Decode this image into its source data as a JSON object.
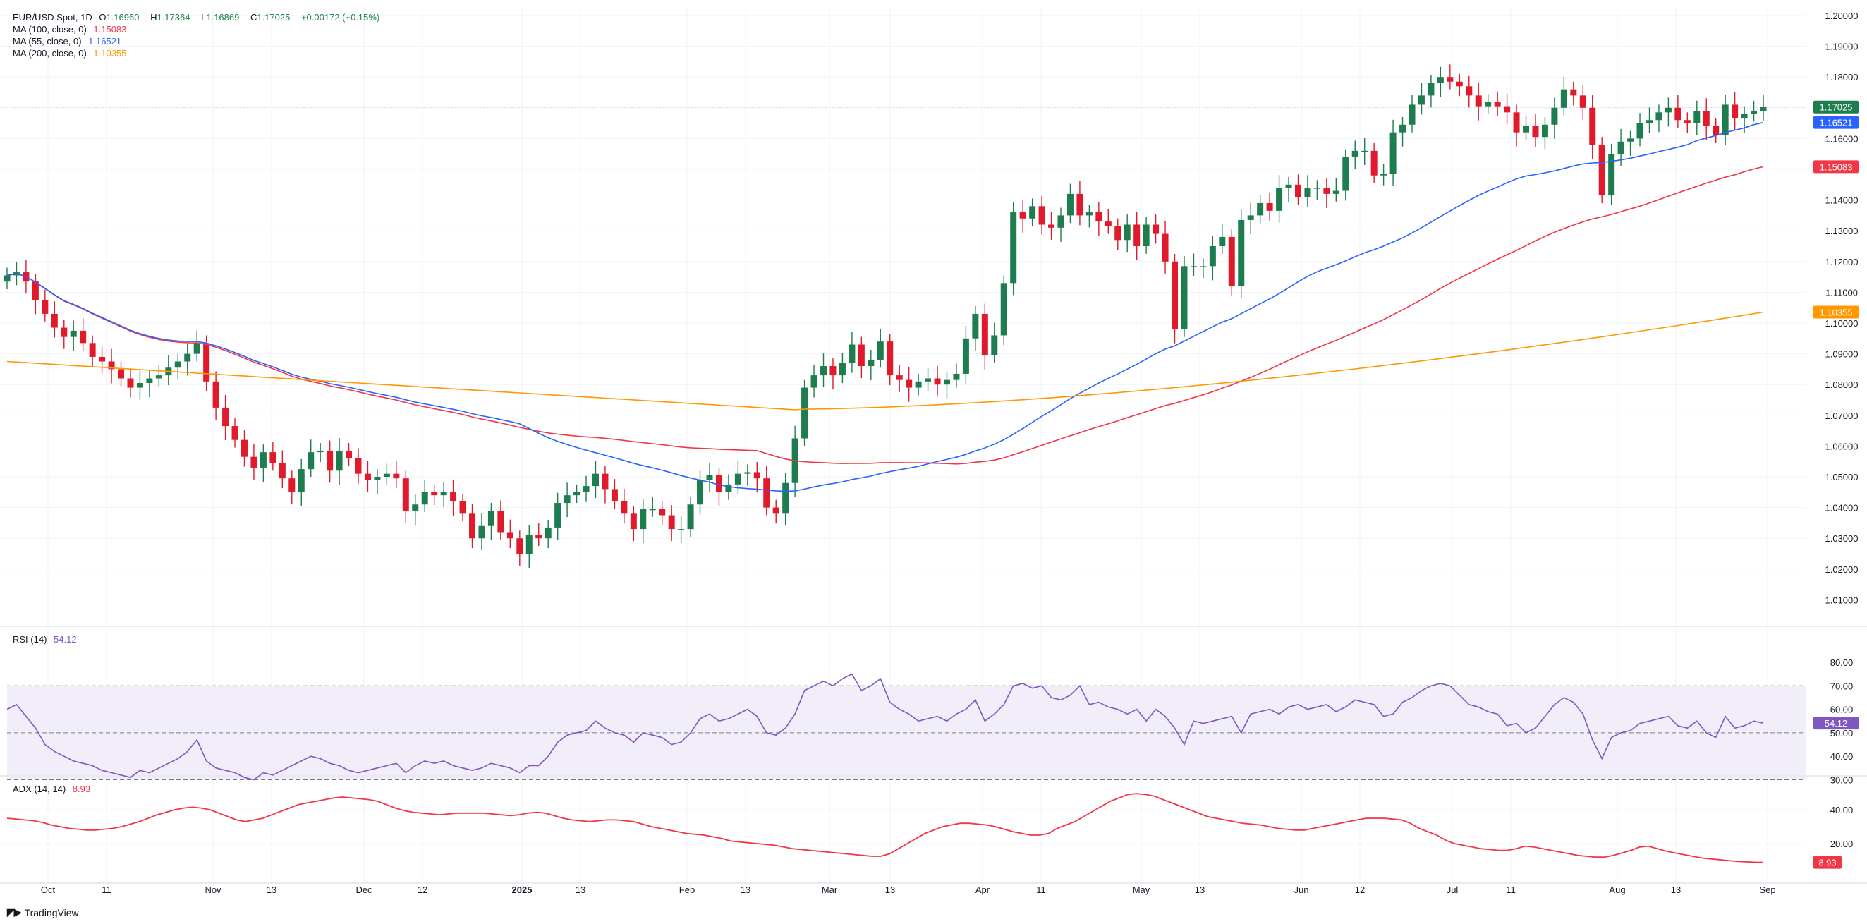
{
  "header": {
    "symbol": "EUR/USD Spot, 1D",
    "open_label": "O",
    "open": "1.16960",
    "high_label": "H",
    "high": "1.17364",
    "low_label": "L",
    "low": "1.16869",
    "close_label": "C",
    "close": "1.17025",
    "change": "+0.00172 (+0.15%)"
  },
  "ma_legend": [
    {
      "label": "MA (100, close, 0)",
      "value": "1.15083",
      "color": "#f23645"
    },
    {
      "label": "MA (55, close, 0)",
      "value": "1.16521",
      "color": "#2962ff"
    },
    {
      "label": "MA (200, close, 0)",
      "value": "1.10355",
      "color": "#ff9800"
    }
  ],
  "rsi_legend": {
    "label": "RSI (14)",
    "value": "54.12",
    "color": "#7e57c2"
  },
  "adx_legend": {
    "label": "ADX (14, 14)",
    "value": "8.93",
    "color": "#f23645"
  },
  "brand": {
    "icon": "tradingview-logo-icon",
    "text": "TradingView"
  },
  "colors": {
    "up": "#1e7d4f",
    "down": "#e01a2b",
    "grid": "#f0f3fa",
    "rsi_band": "#ede7f6"
  },
  "chart_data": [
    {
      "type": "candlestick",
      "title": "EUR/USD Spot, 1D",
      "ylim": [
        1.0,
        1.2
      ],
      "y_ticks": [
        "1.20000",
        "1.19000",
        "1.18000",
        "1.17000",
        "1.16000",
        "1.15000",
        "1.14000",
        "1.13000",
        "1.12000",
        "1.11000",
        "1.10000",
        "1.09000",
        "1.08000",
        "1.07000",
        "1.06000",
        "1.05000",
        "1.04000",
        "1.03000",
        "1.02000",
        "1.01000"
      ],
      "x_ticks": [
        "Oct",
        "11",
        "Nov",
        "13",
        "Dec",
        "12",
        "2025",
        "13",
        "Feb",
        "13",
        "Mar",
        "13",
        "Apr",
        "11",
        "May",
        "13",
        "Jun",
        "12",
        "Jul",
        "11",
        "Aug",
        "13",
        "Sep"
      ],
      "last_price": "1.17025",
      "closes": [
        1.1155,
        1.1165,
        1.1135,
        1.1075,
        1.103,
        1.0985,
        1.0955,
        1.0975,
        1.0935,
        1.089,
        1.0875,
        1.085,
        1.082,
        1.079,
        1.0805,
        1.082,
        1.083,
        1.0855,
        1.0875,
        1.09,
        1.0935,
        1.081,
        1.0725,
        1.0665,
        1.062,
        1.0565,
        1.053,
        1.058,
        1.0545,
        1.0495,
        1.045,
        1.0525,
        1.058,
        1.0585,
        1.052,
        1.0585,
        1.056,
        1.051,
        1.049,
        1.05,
        1.051,
        1.0495,
        1.039,
        1.041,
        1.045,
        1.044,
        1.045,
        1.042,
        1.038,
        1.03,
        1.034,
        1.039,
        1.032,
        1.03,
        1.025,
        1.031,
        1.03,
        1.0335,
        1.0415,
        1.044,
        1.045,
        1.047,
        1.051,
        1.046,
        1.042,
        1.038,
        1.033,
        1.0395,
        1.0395,
        1.0375,
        1.033,
        1.033,
        1.041,
        1.049,
        1.0505,
        1.045,
        1.0475,
        1.051,
        1.0515,
        1.0495,
        1.04,
        1.038,
        1.048,
        1.0625,
        1.079,
        1.083,
        1.086,
        1.083,
        1.087,
        1.093,
        1.086,
        1.088,
        1.094,
        1.083,
        1.0815,
        1.079,
        1.081,
        1.082,
        1.08,
        1.0815,
        1.0835,
        1.095,
        1.103,
        1.0895,
        1.096,
        1.113,
        1.136,
        1.134,
        1.138,
        1.132,
        1.131,
        1.135,
        1.142,
        1.135,
        1.136,
        1.133,
        1.1315,
        1.127,
        1.132,
        1.125,
        1.132,
        1.129,
        1.12,
        1.098,
        1.1185,
        1.1185,
        1.1185,
        1.125,
        1.128,
        1.112,
        1.1335,
        1.135,
        1.139,
        1.1365,
        1.144,
        1.145,
        1.141,
        1.144,
        1.144,
        1.142,
        1.143,
        1.154,
        1.156,
        1.156,
        1.148,
        1.1485,
        1.162,
        1.1645,
        1.171,
        1.174,
        1.178,
        1.18,
        1.1785,
        1.177,
        1.174,
        1.1705,
        1.172,
        1.1705,
        1.1685,
        1.162,
        1.164,
        1.1605,
        1.1645,
        1.17,
        1.176,
        1.174,
        1.17,
        1.158,
        1.1415,
        1.155,
        1.159,
        1.16,
        1.165,
        1.166,
        1.1685,
        1.17,
        1.166,
        1.165,
        1.169,
        1.164,
        1.161,
        1.171,
        1.1665,
        1.168,
        1.169,
        1.17025
      ],
      "series": [
        {
          "name": "MA (100, close, 0)",
          "last": 1.15083
        },
        {
          "name": "MA (55, close, 0)",
          "last": 1.16521
        },
        {
          "name": "MA (200, close, 0)",
          "last": 1.10355
        }
      ]
    },
    {
      "type": "line",
      "title": "RSI (14)",
      "ylim": [
        25,
        85
      ],
      "y_ticks": [
        "80.00",
        "70.00",
        "60.00",
        "50.00",
        "40.00",
        "30.00"
      ],
      "bands": [
        30,
        50,
        70
      ],
      "last": "54.12",
      "values": [
        60,
        62,
        57,
        52,
        45,
        42,
        40,
        38,
        37,
        36,
        34,
        33,
        32,
        31,
        34,
        33,
        35,
        37,
        39,
        42,
        47,
        38,
        35,
        34,
        33,
        31,
        30,
        33,
        32,
        34,
        36,
        38,
        40,
        39,
        37,
        36,
        34,
        33,
        34,
        35,
        36,
        37,
        33,
        36,
        38,
        37,
        38,
        36,
        35,
        34,
        35,
        37,
        36,
        35,
        33,
        36,
        36,
        40,
        46,
        49,
        50,
        51,
        55,
        52,
        50,
        49,
        46,
        50,
        49,
        48,
        45,
        46,
        50,
        56,
        58,
        55,
        56,
        58,
        60,
        57,
        50,
        49,
        52,
        58,
        68,
        70,
        72,
        70,
        73,
        75,
        68,
        70,
        73,
        63,
        60,
        58,
        55,
        56,
        57,
        55,
        58,
        60,
        64,
        55,
        58,
        62,
        70,
        71,
        69,
        70,
        65,
        64,
        66,
        70,
        62,
        63,
        61,
        60,
        58,
        60,
        55,
        60,
        57,
        52,
        45,
        55,
        54,
        55,
        56,
        57,
        50,
        58,
        59,
        60,
        58,
        61,
        62,
        60,
        61,
        62,
        59,
        61,
        64,
        63,
        62,
        57,
        58,
        63,
        65,
        68,
        70,
        71,
        70,
        66,
        62,
        61,
        59,
        58,
        53,
        54,
        50,
        52,
        57,
        62,
        65,
        63,
        58,
        47,
        39,
        48,
        50,
        51,
        54,
        55,
        56,
        57,
        53,
        52,
        55,
        50,
        48,
        57,
        52,
        53,
        55,
        54.12
      ],
      "series": [
        {
          "name": "RSI (14)"
        }
      ]
    },
    {
      "type": "line",
      "title": "ADX (14, 14)",
      "ylim": [
        5,
        55
      ],
      "y_ticks": [
        "40.00",
        "20.00"
      ],
      "last": "8.93",
      "values": [
        35,
        34.5,
        34,
        33.5,
        32.5,
        31,
        30,
        29,
        28.5,
        28,
        28,
        28.5,
        29,
        30,
        31.5,
        33,
        35,
        37,
        38.5,
        40,
        41,
        41.5,
        41,
        40,
        38,
        36,
        34,
        33,
        34,
        35,
        37,
        39,
        41,
        43,
        44,
        45,
        46,
        47,
        47.5,
        47,
        46.5,
        46,
        45,
        43,
        41,
        39.5,
        38.5,
        38,
        37.5,
        37,
        37.5,
        38,
        38,
        38,
        38,
        37.5,
        37,
        36.5,
        37,
        38,
        38.5,
        38,
        36.5,
        35,
        34,
        33.5,
        33,
        33.5,
        34,
        34,
        33.5,
        33,
        31.5,
        30,
        29,
        28,
        27,
        26,
        25.5,
        25,
        24,
        23,
        21.5,
        21,
        20.5,
        20,
        19.5,
        19,
        18,
        17,
        16.5,
        16,
        15.5,
        15,
        14.5,
        14,
        13.5,
        13,
        12.5,
        12.5,
        14,
        17,
        20,
        23,
        26,
        28,
        30,
        31,
        32,
        32,
        31.5,
        31,
        30,
        28.5,
        27,
        26,
        25,
        25,
        26,
        29,
        31,
        33,
        36,
        39,
        42,
        45,
        47,
        49,
        49.5,
        49,
        48,
        46,
        44,
        42,
        40,
        38,
        36,
        35,
        34,
        33,
        32,
        31.5,
        31,
        30,
        29,
        28.5,
        28,
        28,
        29,
        30,
        31,
        32,
        33,
        34,
        35,
        35,
        35,
        34.5,
        34,
        32,
        29,
        27,
        25,
        22,
        20,
        19,
        18,
        17,
        16.5,
        16,
        16,
        17,
        18.5,
        18,
        17,
        16,
        15,
        14,
        13,
        12.5,
        12,
        12,
        13,
        14.5,
        16,
        18,
        18.5,
        17,
        15.5,
        14.5,
        13.5,
        12.5,
        11.5,
        11,
        10.5,
        10,
        9.5,
        9.2,
        9,
        8.93
      ],
      "series": [
        {
          "name": "ADX (14, 14)"
        }
      ]
    }
  ]
}
